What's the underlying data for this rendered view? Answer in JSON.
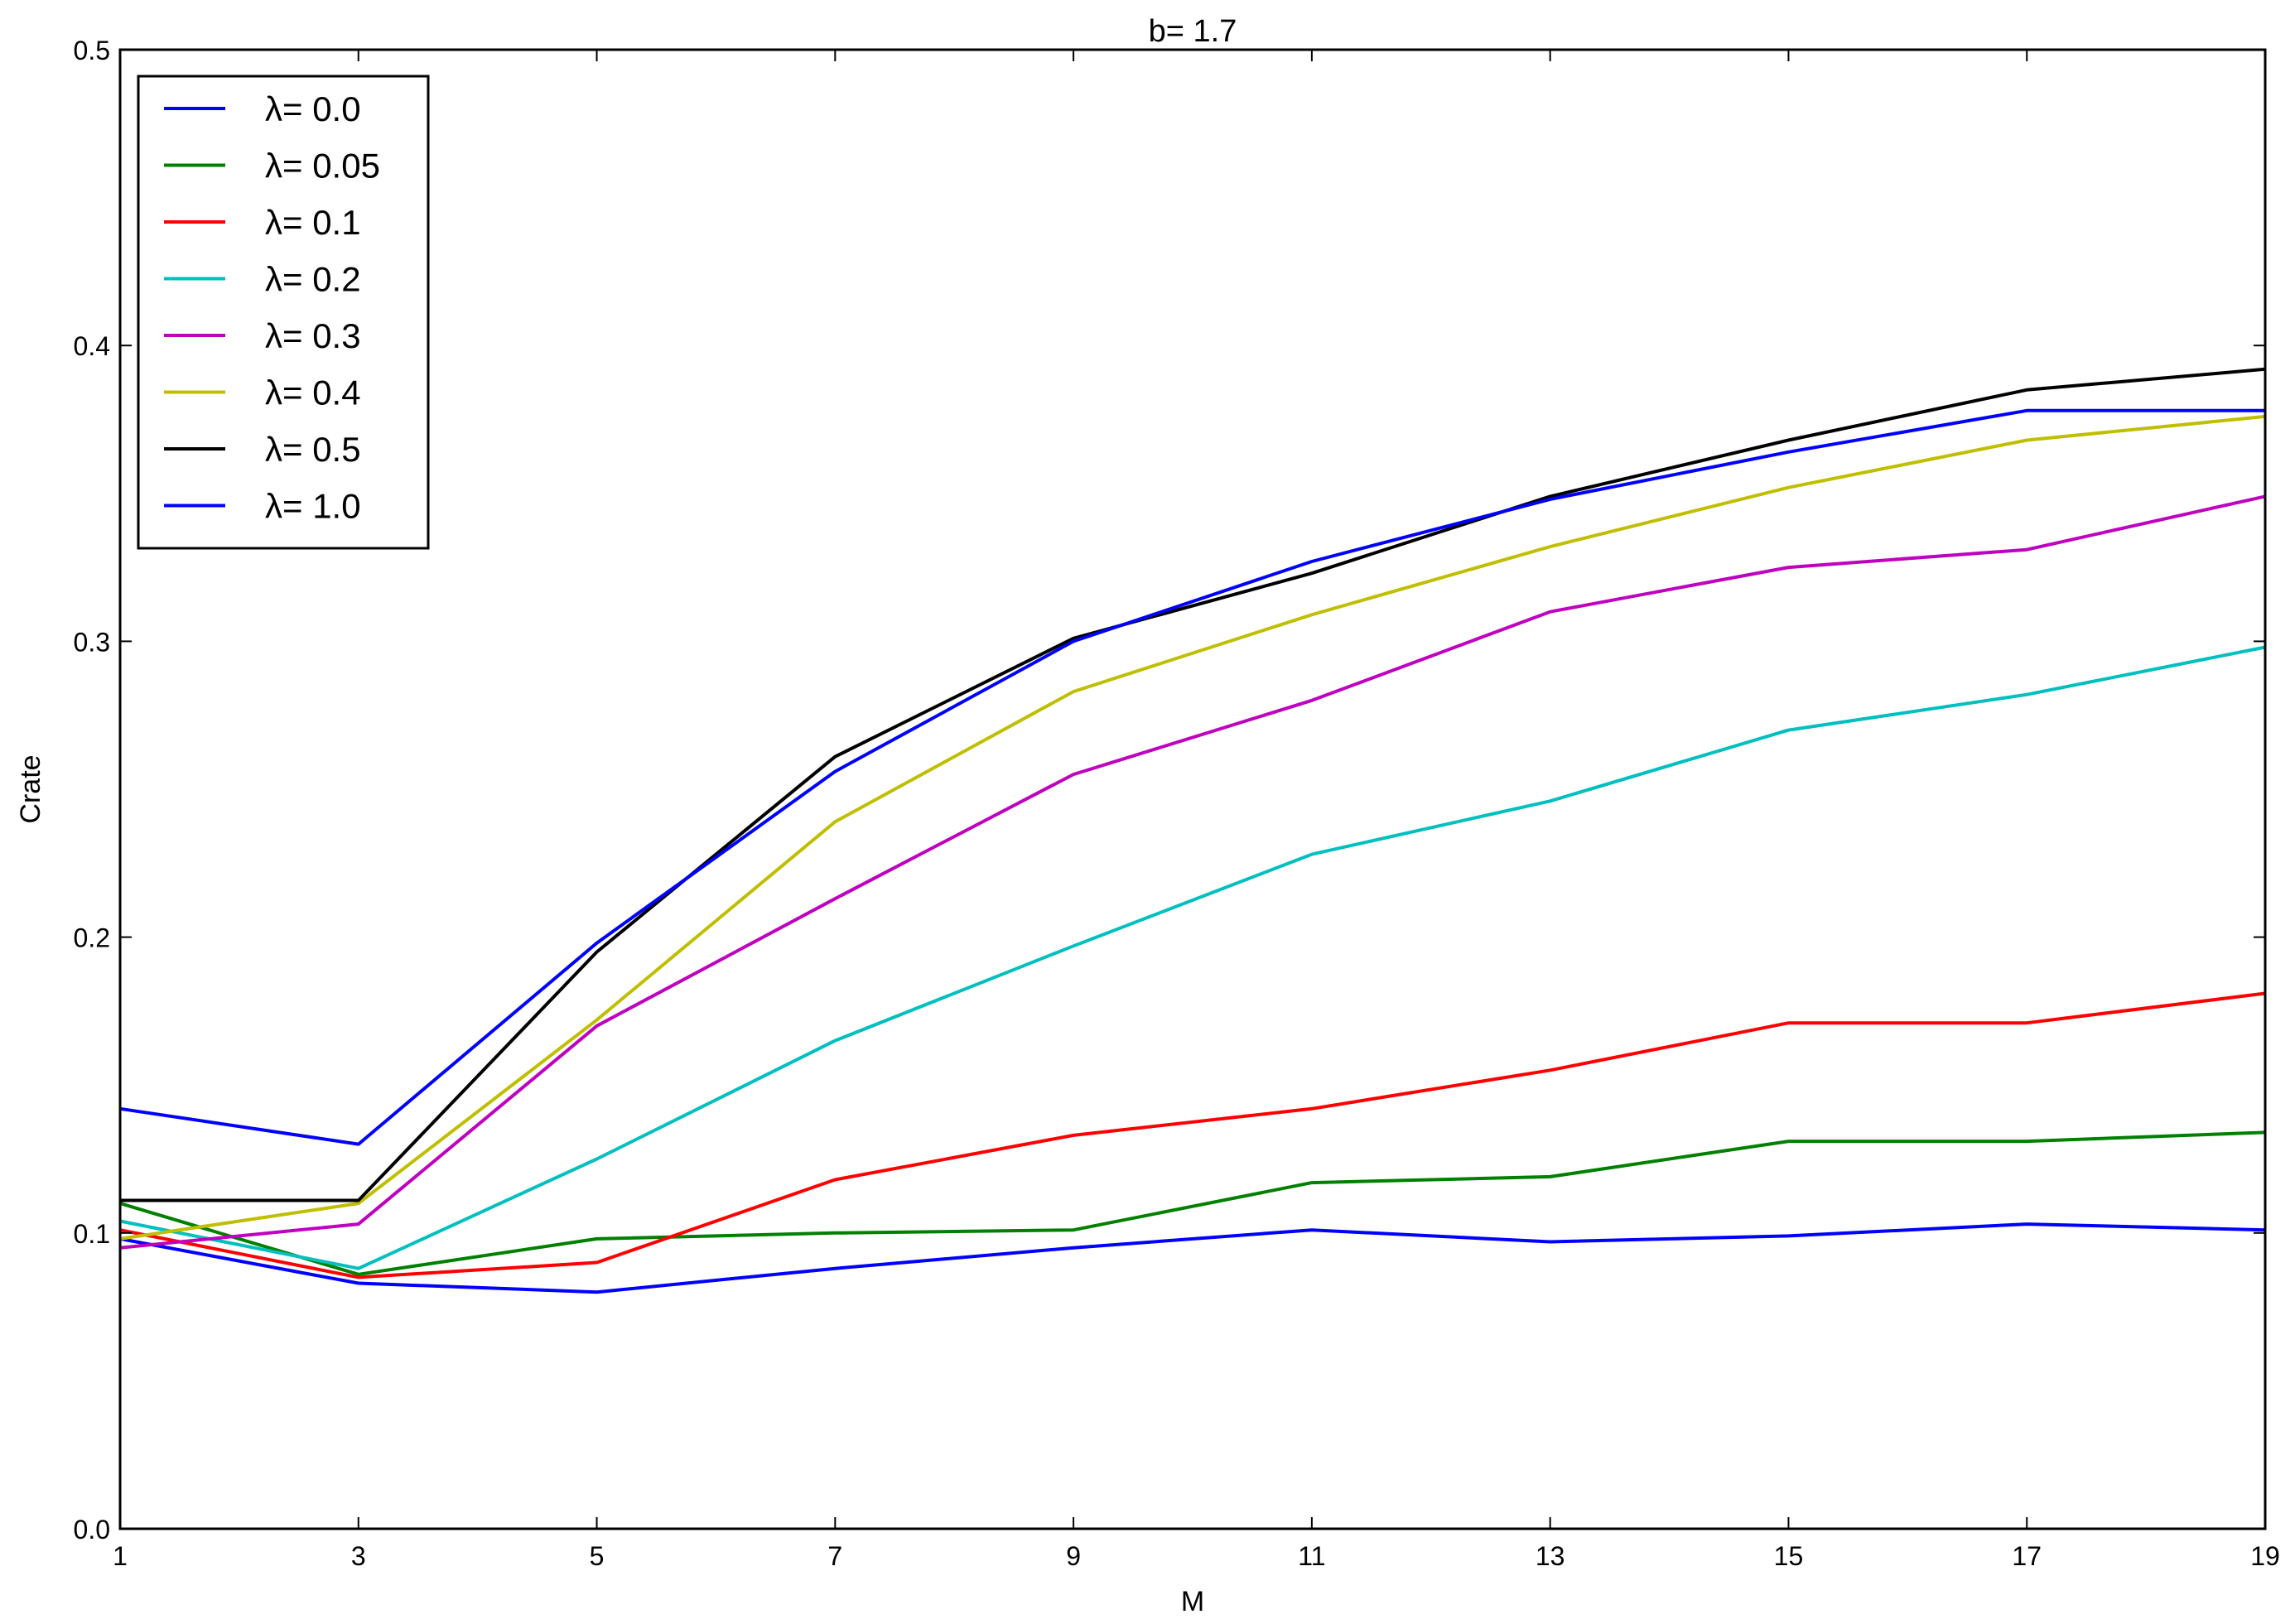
{
  "chart_data": {
    "type": "line",
    "title": "b= 1.7",
    "xlabel": "M",
    "ylabel": "Crate",
    "xlim": [
      1,
      19
    ],
    "ylim": [
      0.0,
      0.5
    ],
    "x": [
      1,
      3,
      5,
      7,
      9,
      11,
      13,
      15,
      17,
      19
    ],
    "x_ticks": [
      "1",
      "3",
      "5",
      "7",
      "9",
      "11",
      "13",
      "15",
      "17",
      "19"
    ],
    "y_ticks": [
      "0.0",
      "0.1",
      "0.2",
      "0.3",
      "0.4",
      "0.5"
    ],
    "grid": false,
    "legend_position": "top-left",
    "series": [
      {
        "name": "λ= 0.0",
        "color": "#0000ff",
        "values": [
          0.098,
          0.083,
          0.08,
          0.088,
          0.095,
          0.101,
          0.097,
          0.099,
          0.103,
          0.101
        ]
      },
      {
        "name": "λ= 0.05",
        "color": "#008000",
        "values": [
          0.11,
          0.086,
          0.098,
          0.1,
          0.101,
          0.117,
          0.119,
          0.131,
          0.131,
          0.134
        ]
      },
      {
        "name": "λ= 0.1",
        "color": "#ff0000",
        "values": [
          0.101,
          0.085,
          0.09,
          0.118,
          0.133,
          0.142,
          0.155,
          0.171,
          0.171,
          0.181
        ]
      },
      {
        "name": "λ= 0.2",
        "color": "#00bfbf",
        "values": [
          0.104,
          0.088,
          0.125,
          0.165,
          0.197,
          0.228,
          0.246,
          0.27,
          0.282,
          0.298
        ]
      },
      {
        "name": "λ= 0.3",
        "color": "#bf00bf",
        "values": [
          0.095,
          0.103,
          0.17,
          0.213,
          0.255,
          0.28,
          0.31,
          0.325,
          0.331,
          0.349
        ]
      },
      {
        "name": "λ= 0.4",
        "color": "#bfbf00",
        "values": [
          0.098,
          0.11,
          0.172,
          0.239,
          0.283,
          0.309,
          0.332,
          0.352,
          0.368,
          0.376
        ]
      },
      {
        "name": "λ= 0.5",
        "color": "#000000",
        "values": [
          0.111,
          0.111,
          0.195,
          0.261,
          0.301,
          0.323,
          0.349,
          0.368,
          0.385,
          0.392
        ]
      },
      {
        "name": "λ= 1.0",
        "color": "#0000ff",
        "values": [
          0.142,
          0.13,
          0.198,
          0.256,
          0.3,
          0.327,
          0.348,
          0.364,
          0.378,
          0.378
        ]
      }
    ]
  }
}
